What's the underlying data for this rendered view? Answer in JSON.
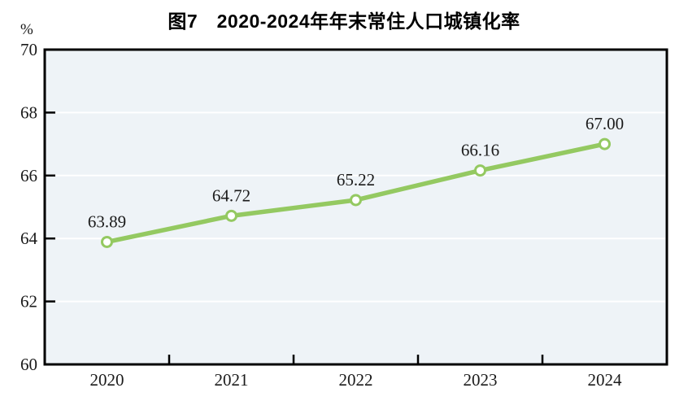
{
  "title": "图7　2020-2024年年末常住人口城镇化率",
  "y_axis_unit": "%",
  "chart_data": {
    "type": "line",
    "title": "图7　2020-2024年年末常住人口城镇化率",
    "categories": [
      "2020",
      "2021",
      "2022",
      "2023",
      "2024"
    ],
    "series": [
      {
        "name": "年末常住人口城镇化率",
        "values": [
          63.89,
          64.72,
          65.22,
          66.16,
          67.0
        ]
      }
    ],
    "data_labels": [
      "63.89",
      "64.72",
      "65.22",
      "66.16",
      "67.00"
    ],
    "xlabel": "",
    "ylabel": "%",
    "ylim": [
      60,
      70
    ],
    "ytick_interval": 2,
    "yticks": [
      "60",
      "62",
      "64",
      "66",
      "68",
      "70"
    ],
    "grid": true,
    "legend_position": "none",
    "colors": {
      "line": "#94c961",
      "marker_fill": "#ffffff",
      "plot_background": "#eef3f7",
      "gridline": "#ffffff",
      "axis": "#000000",
      "text": "#1a1a1a"
    }
  }
}
